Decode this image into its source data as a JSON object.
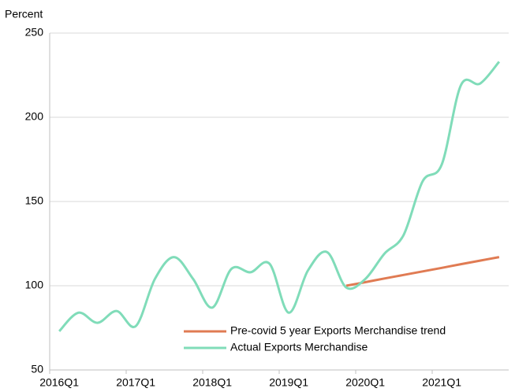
{
  "chart_data": {
    "type": "line",
    "y_label": "Percent",
    "categories": [
      "2016Q1",
      null,
      null,
      null,
      "2017Q1",
      null,
      null,
      null,
      "2018Q1",
      null,
      null,
      null,
      "2019Q1",
      null,
      null,
      null,
      "2020Q1",
      null,
      null,
      null,
      "2021Q1",
      null,
      null,
      null
    ],
    "series": [
      {
        "name": "Pre-covid 5 year Exports Merchandise trend",
        "color": "#e07b53",
        "values": [
          null,
          null,
          null,
          null,
          null,
          null,
          null,
          null,
          null,
          null,
          null,
          null,
          null,
          null,
          null,
          100,
          102.1,
          104.3,
          106.4,
          108.5,
          110.6,
          112.8,
          114.9,
          117
        ]
      },
      {
        "name": "Actual Exports Merchandise",
        "color": "#80dcb9",
        "values": [
          73,
          84,
          78,
          85,
          76,
          104,
          117,
          104,
          87,
          110,
          108,
          113,
          84,
          109,
          120,
          99,
          104,
          119,
          130,
          162,
          172,
          219,
          220,
          233
        ]
      }
    ],
    "ylim": [
      50,
      250
    ],
    "yticks": [
      50,
      100,
      150,
      200,
      250
    ],
    "grid": true,
    "legend": "lower right"
  }
}
